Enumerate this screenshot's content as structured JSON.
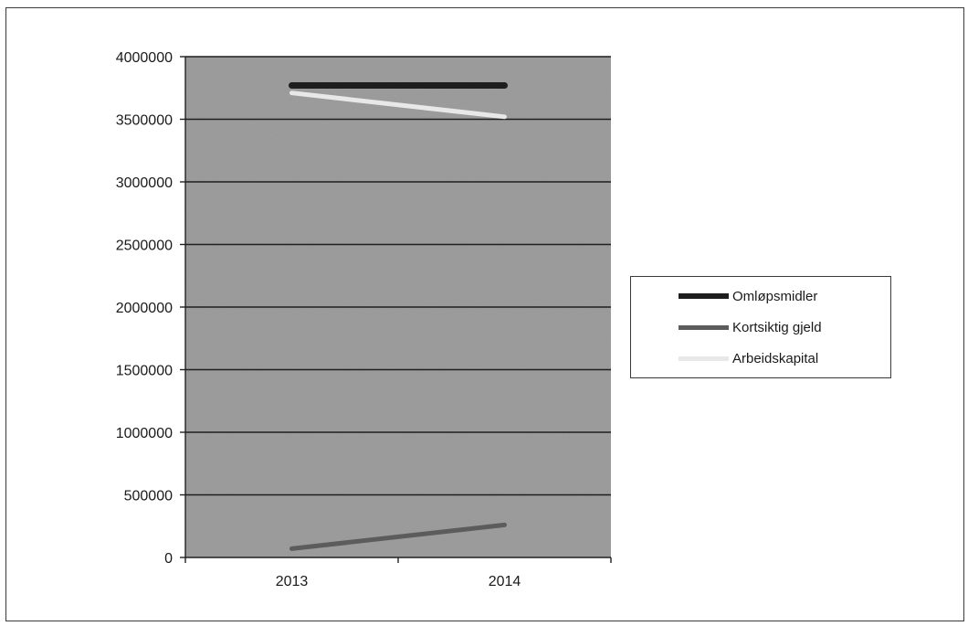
{
  "chart_data": {
    "type": "line",
    "categories": [
      "2013",
      "2014"
    ],
    "series": [
      {
        "name": "Omløpsmidler",
        "values": [
          3770000,
          3770000
        ],
        "color": "#1e1e1e"
      },
      {
        "name": "Kortsiktig gjeld",
        "values": [
          70000,
          260000
        ],
        "color": "#5c5c5c"
      },
      {
        "name": "Arbeidskapital",
        "values": [
          3710000,
          3520000
        ],
        "color": "#e8e8e8"
      }
    ],
    "title": "",
    "xlabel": "",
    "ylabel": "",
    "ylim": [
      0,
      4000000
    ],
    "yticks": [
      "0",
      "500000",
      "1000000",
      "1500000",
      "2000000",
      "2500000",
      "3000000",
      "3500000",
      "4000000"
    ],
    "grid": true,
    "legend_position": "right",
    "plot_background": "#9e9e9e",
    "gridline_color": "#1e1e1e"
  }
}
